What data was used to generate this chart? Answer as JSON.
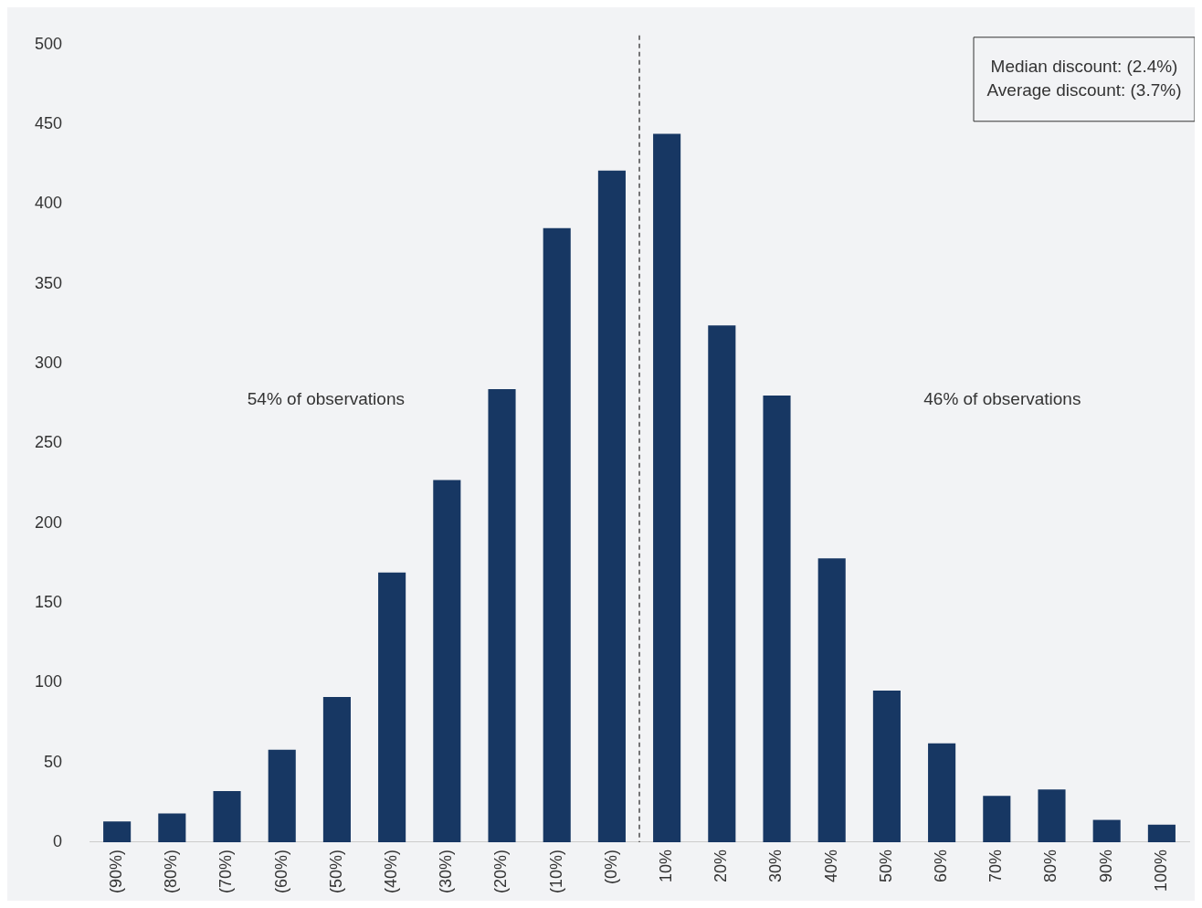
{
  "chart_data": {
    "type": "bar",
    "categories": [
      "(90%)",
      "(80%)",
      "(70%)",
      "(60%)",
      "(50%)",
      "(40%)",
      "(30%)",
      "(20%)",
      "(10%)",
      "(0%)",
      "10%",
      "20%",
      "30%",
      "40%",
      "50%",
      "60%",
      "70%",
      "80%",
      "90%",
      "100%"
    ],
    "values": [
      13,
      18,
      32,
      58,
      91,
      169,
      227,
      284,
      385,
      421,
      444,
      324,
      280,
      178,
      95,
      62,
      29,
      33,
      14,
      11
    ],
    "color": "#173763",
    "ylim": [
      0,
      500
    ],
    "yticks": [
      0,
      50,
      100,
      150,
      200,
      250,
      300,
      350,
      400,
      450,
      500
    ],
    "grid": false,
    "legend": false,
    "annotations": [
      "54% of observations",
      "46% of observations",
      "Median discount: (2.4%)",
      "Average discount: (3.7%)"
    ]
  }
}
